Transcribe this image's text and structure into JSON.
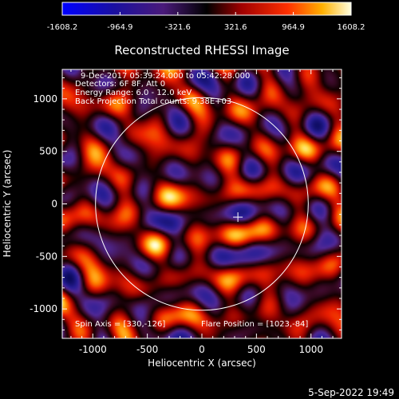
{
  "colorbar": {
    "ticks": [
      "-1608.2",
      "-964.9",
      "-321.6",
      "321.6",
      "964.9",
      "1608.2"
    ],
    "tick_values": [
      -1608.2,
      -964.9,
      -321.6,
      321.6,
      964.9,
      1608.2
    ],
    "range": [
      -1608.2,
      1608.2
    ]
  },
  "plot": {
    "title": "Reconstructed RHESSI Image",
    "xlabel": "Heliocentric X (arcsec)",
    "ylabel": "Heliocentric Y (arcsec)",
    "xrange": [
      -1280,
      1280
    ],
    "yrange": [
      -1280,
      1280
    ],
    "xticks": [
      -1000,
      -500,
      0,
      500,
      1000
    ],
    "yticks": [
      -1000,
      -500,
      0,
      500,
      1000
    ],
    "xtick_labels": [
      "-1000",
      "-500",
      "0",
      "500",
      "1000"
    ],
    "ytick_labels": [
      "-1000",
      "-500",
      "0",
      "500",
      "1000"
    ],
    "solar_radius_arcsec": 975,
    "disk_center": [
      0,
      0
    ],
    "spin_axis": [
      330,
      -126
    ],
    "info": {
      "line1": "9-Dec-2017 05:39:24.000 to 05:42:28.000",
      "line2": "Detectors: 6F 8F, Att 0",
      "line3": "Energy Range: 6.0 - 12.0 keV",
      "line4": "Back Projection   Total counts: 9.38E+03",
      "spin": "Spin Axis = [330,-126]",
      "flare": "Flare Position = [1023,-84]"
    }
  },
  "footer": {
    "date": "5-Sep-2022 19:49"
  }
}
